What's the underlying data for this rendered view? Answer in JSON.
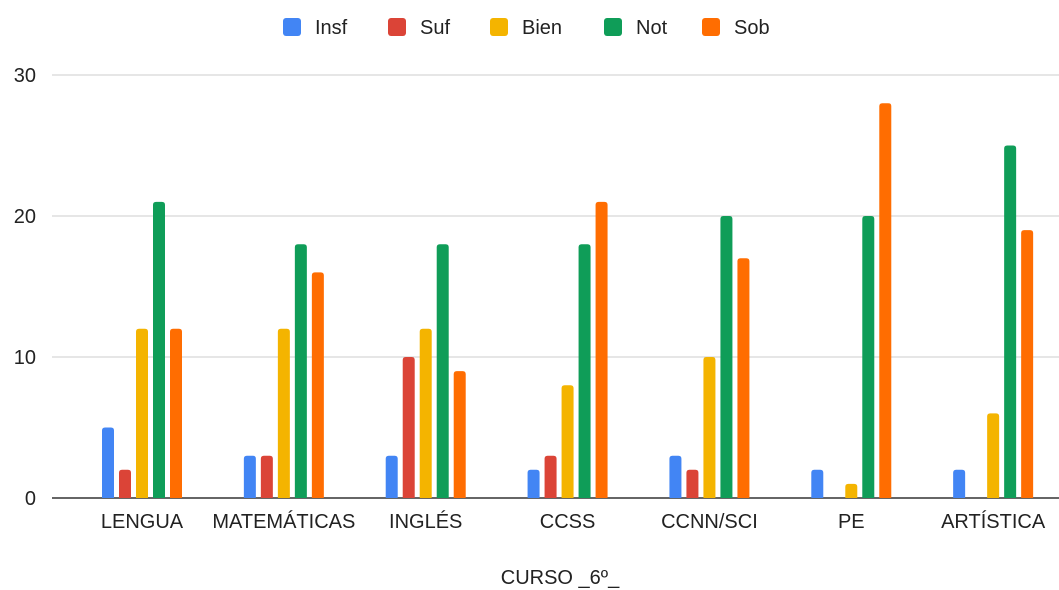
{
  "chart_data": {
    "type": "bar",
    "categories": [
      "LENGUA",
      "MATEMÁTICAS",
      "INGLÉS",
      "CCSS",
      "CCNN/SCI",
      "PE",
      "ARTÍSTICA"
    ],
    "series": [
      {
        "name": "Insf",
        "color": "#4285F4",
        "values": [
          5,
          3,
          3,
          2,
          3,
          2,
          2
        ]
      },
      {
        "name": "Suf",
        "color": "#DB4437",
        "values": [
          2,
          3,
          10,
          3,
          2,
          0,
          0
        ]
      },
      {
        "name": "Bien",
        "color": "#F4B400",
        "values": [
          12,
          12,
          12,
          8,
          10,
          1,
          6
        ]
      },
      {
        "name": "Not",
        "color": "#0F9D58",
        "values": [
          21,
          18,
          18,
          18,
          20,
          20,
          25
        ]
      },
      {
        "name": "Sob",
        "color": "#FF6D01",
        "values": [
          12,
          16,
          9,
          21,
          17,
          28,
          19
        ]
      }
    ],
    "xlabel": "CURSO _6º_",
    "ylabel": "",
    "ylim": [
      0,
      30
    ],
    "yticks": [
      0,
      10,
      20,
      30
    ],
    "grid": true,
    "legend": "top-center"
  }
}
